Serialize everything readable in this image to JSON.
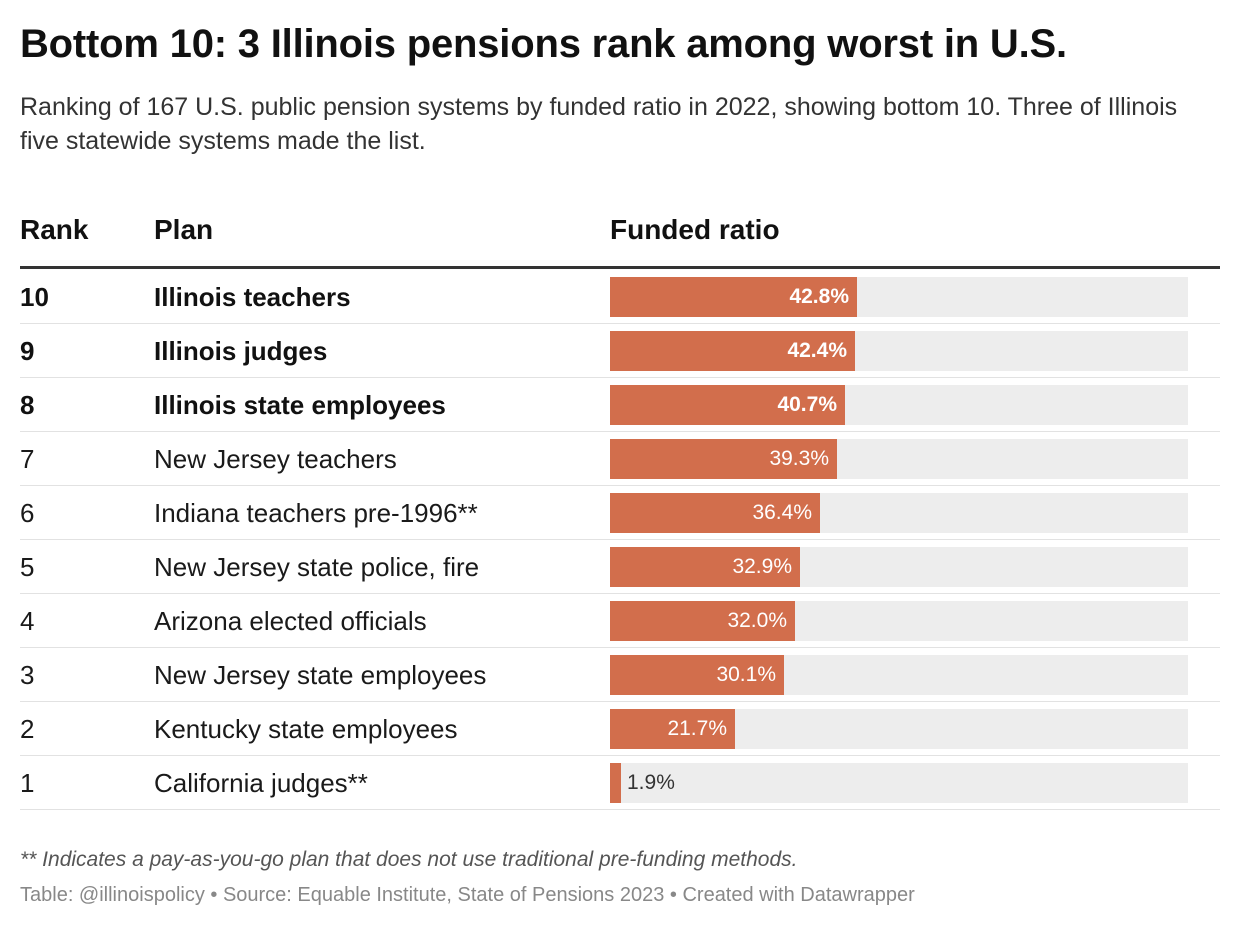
{
  "header": {
    "title": "Bottom 10: 3 Illinois pensions rank among worst in U.S.",
    "subtitle": "Ranking of 167 U.S. public pension systems by funded ratio in 2022, showing bottom 10. Three of Illinois five statewide systems made the list."
  },
  "columns": {
    "rank": "Rank",
    "plan": "Plan",
    "funded": "Funded ratio"
  },
  "colors": {
    "bar": "#d26e4c",
    "track": "#ededed"
  },
  "chart_data": {
    "type": "table",
    "title": "Bottom 10: 3 Illinois pensions rank among worst in U.S.",
    "value_range": [
      0,
      100
    ],
    "unit": "%",
    "rows": [
      {
        "rank": "10",
        "plan": "Illinois teachers",
        "value": 42.8,
        "label": "42.8%",
        "bold": true
      },
      {
        "rank": "9",
        "plan": "Illinois judges",
        "value": 42.4,
        "label": "42.4%",
        "bold": true
      },
      {
        "rank": "8",
        "plan": "Illinois state employees",
        "value": 40.7,
        "label": "40.7%",
        "bold": true
      },
      {
        "rank": "7",
        "plan": "New Jersey teachers",
        "value": 39.3,
        "label": "39.3%",
        "bold": false
      },
      {
        "rank": "6",
        "plan": "Indiana teachers pre-1996**",
        "value": 36.4,
        "label": "36.4%",
        "bold": false
      },
      {
        "rank": "5",
        "plan": "New Jersey state police, fire",
        "value": 32.9,
        "label": "32.9%",
        "bold": false
      },
      {
        "rank": "4",
        "plan": "Arizona elected officials",
        "value": 32.0,
        "label": "32.0%",
        "bold": false
      },
      {
        "rank": "3",
        "plan": "New Jersey state employees",
        "value": 30.1,
        "label": "30.1%",
        "bold": false
      },
      {
        "rank": "2",
        "plan": "Kentucky state employees",
        "value": 21.7,
        "label": "21.7%",
        "bold": false
      },
      {
        "rank": "1",
        "plan": "California judges**",
        "value": 1.9,
        "label": "1.9%",
        "bold": false
      }
    ]
  },
  "footer": {
    "note": "** Indicates a pay-as-you-go plan that does not use traditional pre-funding methods.",
    "source": "Table: @illinoispolicy • Source: Equable Institute, State of Pensions 2023 • Created with Datawrapper"
  }
}
